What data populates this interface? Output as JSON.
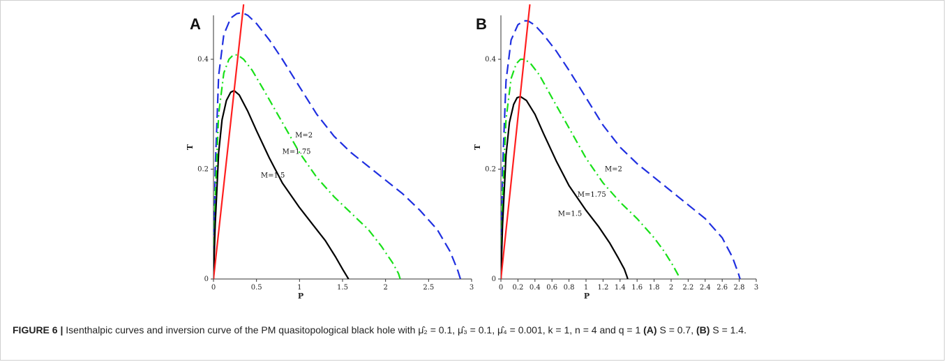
{
  "caption": {
    "figure_label": "FIGURE 6 |",
    "text_main": " Isenthalpic curves and inversion curve of the PM quasitopological black hole with μ̂₂ = 0.1, μ̂₃ = 0.1, μ̂₄ = 0.001, k = 1, n = 4 and q = 1 ",
    "part_a_label": "(A)",
    "part_a_text": " S = 0.7, ",
    "part_b_label": "(B)",
    "part_b_text": " S = 1.4."
  },
  "colors": {
    "inversion": "#ff1f1f",
    "m2": "#1f2fe0",
    "m175": "#18e018",
    "m15": "#000000"
  },
  "chart_data": [
    {
      "panel": "A",
      "type": "line",
      "xlabel": "P",
      "ylabel": "T",
      "xlim": [
        0,
        3
      ],
      "ylim": [
        0,
        0.48
      ],
      "xticks": [
        "0",
        "0.5",
        "1",
        "1.5",
        "2",
        "2.5",
        "3"
      ],
      "xtick_values": [
        0,
        0.5,
        1,
        1.5,
        2,
        2.5,
        3
      ],
      "yticks": [
        "0",
        "0.2",
        "0.4"
      ],
      "ytick_values": [
        0,
        0.2,
        0.4
      ],
      "series": [
        {
          "name": "M=2",
          "style": "dash",
          "color_key": "m2",
          "x": [
            0,
            0.02,
            0.06,
            0.12,
            0.2,
            0.27,
            0.33,
            0.4,
            0.5,
            0.65,
            0.8,
            1.0,
            1.2,
            1.4,
            1.6,
            1.8,
            2.0,
            2.2,
            2.4,
            2.6,
            2.75,
            2.84,
            2.87
          ],
          "y": [
            0,
            0.2,
            0.37,
            0.445,
            0.475,
            0.483,
            0.485,
            0.48,
            0.465,
            0.435,
            0.4,
            0.35,
            0.3,
            0.26,
            0.23,
            0.205,
            0.18,
            0.155,
            0.125,
            0.09,
            0.05,
            0.015,
            0
          ]
        },
        {
          "name": "M=1.75",
          "style": "dashdot",
          "color_key": "m175",
          "x": [
            0,
            0.02,
            0.06,
            0.12,
            0.18,
            0.23,
            0.28,
            0.35,
            0.45,
            0.6,
            0.8,
            1.0,
            1.2,
            1.4,
            1.6,
            1.8,
            1.95,
            2.08,
            2.15,
            2.17
          ],
          "y": [
            0,
            0.15,
            0.3,
            0.375,
            0.4,
            0.408,
            0.408,
            0.4,
            0.38,
            0.34,
            0.285,
            0.23,
            0.185,
            0.15,
            0.12,
            0.09,
            0.06,
            0.03,
            0.01,
            0
          ]
        },
        {
          "name": "M=1.5",
          "style": "solid",
          "color_key": "m15",
          "x": [
            0,
            0.02,
            0.06,
            0.1,
            0.15,
            0.2,
            0.24,
            0.3,
            0.4,
            0.5,
            0.65,
            0.8,
            1.0,
            1.15,
            1.3,
            1.42,
            1.5,
            1.55,
            1.57
          ],
          "y": [
            0,
            0.1,
            0.23,
            0.29,
            0.325,
            0.34,
            0.343,
            0.335,
            0.305,
            0.27,
            0.22,
            0.175,
            0.13,
            0.1,
            0.07,
            0.04,
            0.018,
            0.005,
            0
          ]
        },
        {
          "name": "",
          "style": "solid",
          "color_key": "inversion",
          "x": [
            0,
            0.35
          ],
          "y": [
            0,
            0.5
          ]
        }
      ],
      "labels": [
        {
          "text": "M=2",
          "x": 0.95,
          "y": 0.258
        },
        {
          "text": "M=1.75",
          "x": 0.8,
          "y": 0.228
        },
        {
          "text": "M=1.5",
          "x": 0.55,
          "y": 0.185
        }
      ]
    },
    {
      "panel": "B",
      "type": "line",
      "xlabel": "P",
      "ylabel": "T",
      "xlim": [
        0,
        3
      ],
      "ylim": [
        0,
        0.48
      ],
      "xticks": [
        "0",
        "0.2",
        "0.4",
        "0.6",
        "0.8",
        "1",
        "1.2",
        "1.4",
        "1.6",
        "1.8",
        "2",
        "2.2",
        "2.4",
        "2.6",
        "2.8",
        "3"
      ],
      "xtick_values": [
        0,
        0.2,
        0.4,
        0.6,
        0.8,
        1,
        1.2,
        1.4,
        1.6,
        1.8,
        2,
        2.2,
        2.4,
        2.6,
        2.8,
        3
      ],
      "yticks": [
        "0",
        "0.2",
        "0.4"
      ],
      "ytick_values": [
        0,
        0.2,
        0.4
      ],
      "series": [
        {
          "name": "M=2",
          "style": "dash",
          "color_key": "m2",
          "x": [
            0,
            0.02,
            0.06,
            0.12,
            0.2,
            0.27,
            0.32,
            0.4,
            0.5,
            0.65,
            0.8,
            1.0,
            1.2,
            1.4,
            1.6,
            1.8,
            2.0,
            2.2,
            2.4,
            2.6,
            2.72,
            2.79,
            2.81
          ],
          "y": [
            0,
            0.2,
            0.36,
            0.435,
            0.463,
            0.47,
            0.47,
            0.462,
            0.445,
            0.415,
            0.38,
            0.33,
            0.28,
            0.24,
            0.21,
            0.185,
            0.16,
            0.135,
            0.11,
            0.075,
            0.04,
            0.01,
            0
          ]
        },
        {
          "name": "M=1.75",
          "style": "dashdot",
          "color_key": "m175",
          "x": [
            0,
            0.02,
            0.06,
            0.12,
            0.18,
            0.23,
            0.28,
            0.35,
            0.45,
            0.6,
            0.8,
            1.0,
            1.2,
            1.4,
            1.6,
            1.8,
            1.92,
            2.02,
            2.08,
            2.1
          ],
          "y": [
            0,
            0.15,
            0.29,
            0.365,
            0.392,
            0.4,
            0.4,
            0.392,
            0.372,
            0.33,
            0.275,
            0.22,
            0.175,
            0.14,
            0.11,
            0.075,
            0.05,
            0.025,
            0.008,
            0
          ]
        },
        {
          "name": "M=1.5",
          "style": "solid",
          "color_key": "m15",
          "x": [
            0,
            0.02,
            0.06,
            0.1,
            0.15,
            0.19,
            0.23,
            0.3,
            0.4,
            0.5,
            0.65,
            0.8,
            1.0,
            1.15,
            1.28,
            1.38,
            1.45,
            1.48,
            1.49
          ],
          "y": [
            0,
            0.1,
            0.225,
            0.285,
            0.318,
            0.33,
            0.332,
            0.325,
            0.3,
            0.265,
            0.215,
            0.17,
            0.125,
            0.095,
            0.065,
            0.038,
            0.018,
            0.005,
            0
          ]
        },
        {
          "name": "",
          "style": "solid",
          "color_key": "inversion",
          "x": [
            0,
            0.34
          ],
          "y": [
            0,
            0.5
          ]
        }
      ],
      "labels": [
        {
          "text": "M=2",
          "x": 1.22,
          "y": 0.196
        },
        {
          "text": "M=1.75",
          "x": 0.9,
          "y": 0.15
        },
        {
          "text": "M=1.5",
          "x": 0.67,
          "y": 0.115
        }
      ]
    }
  ]
}
